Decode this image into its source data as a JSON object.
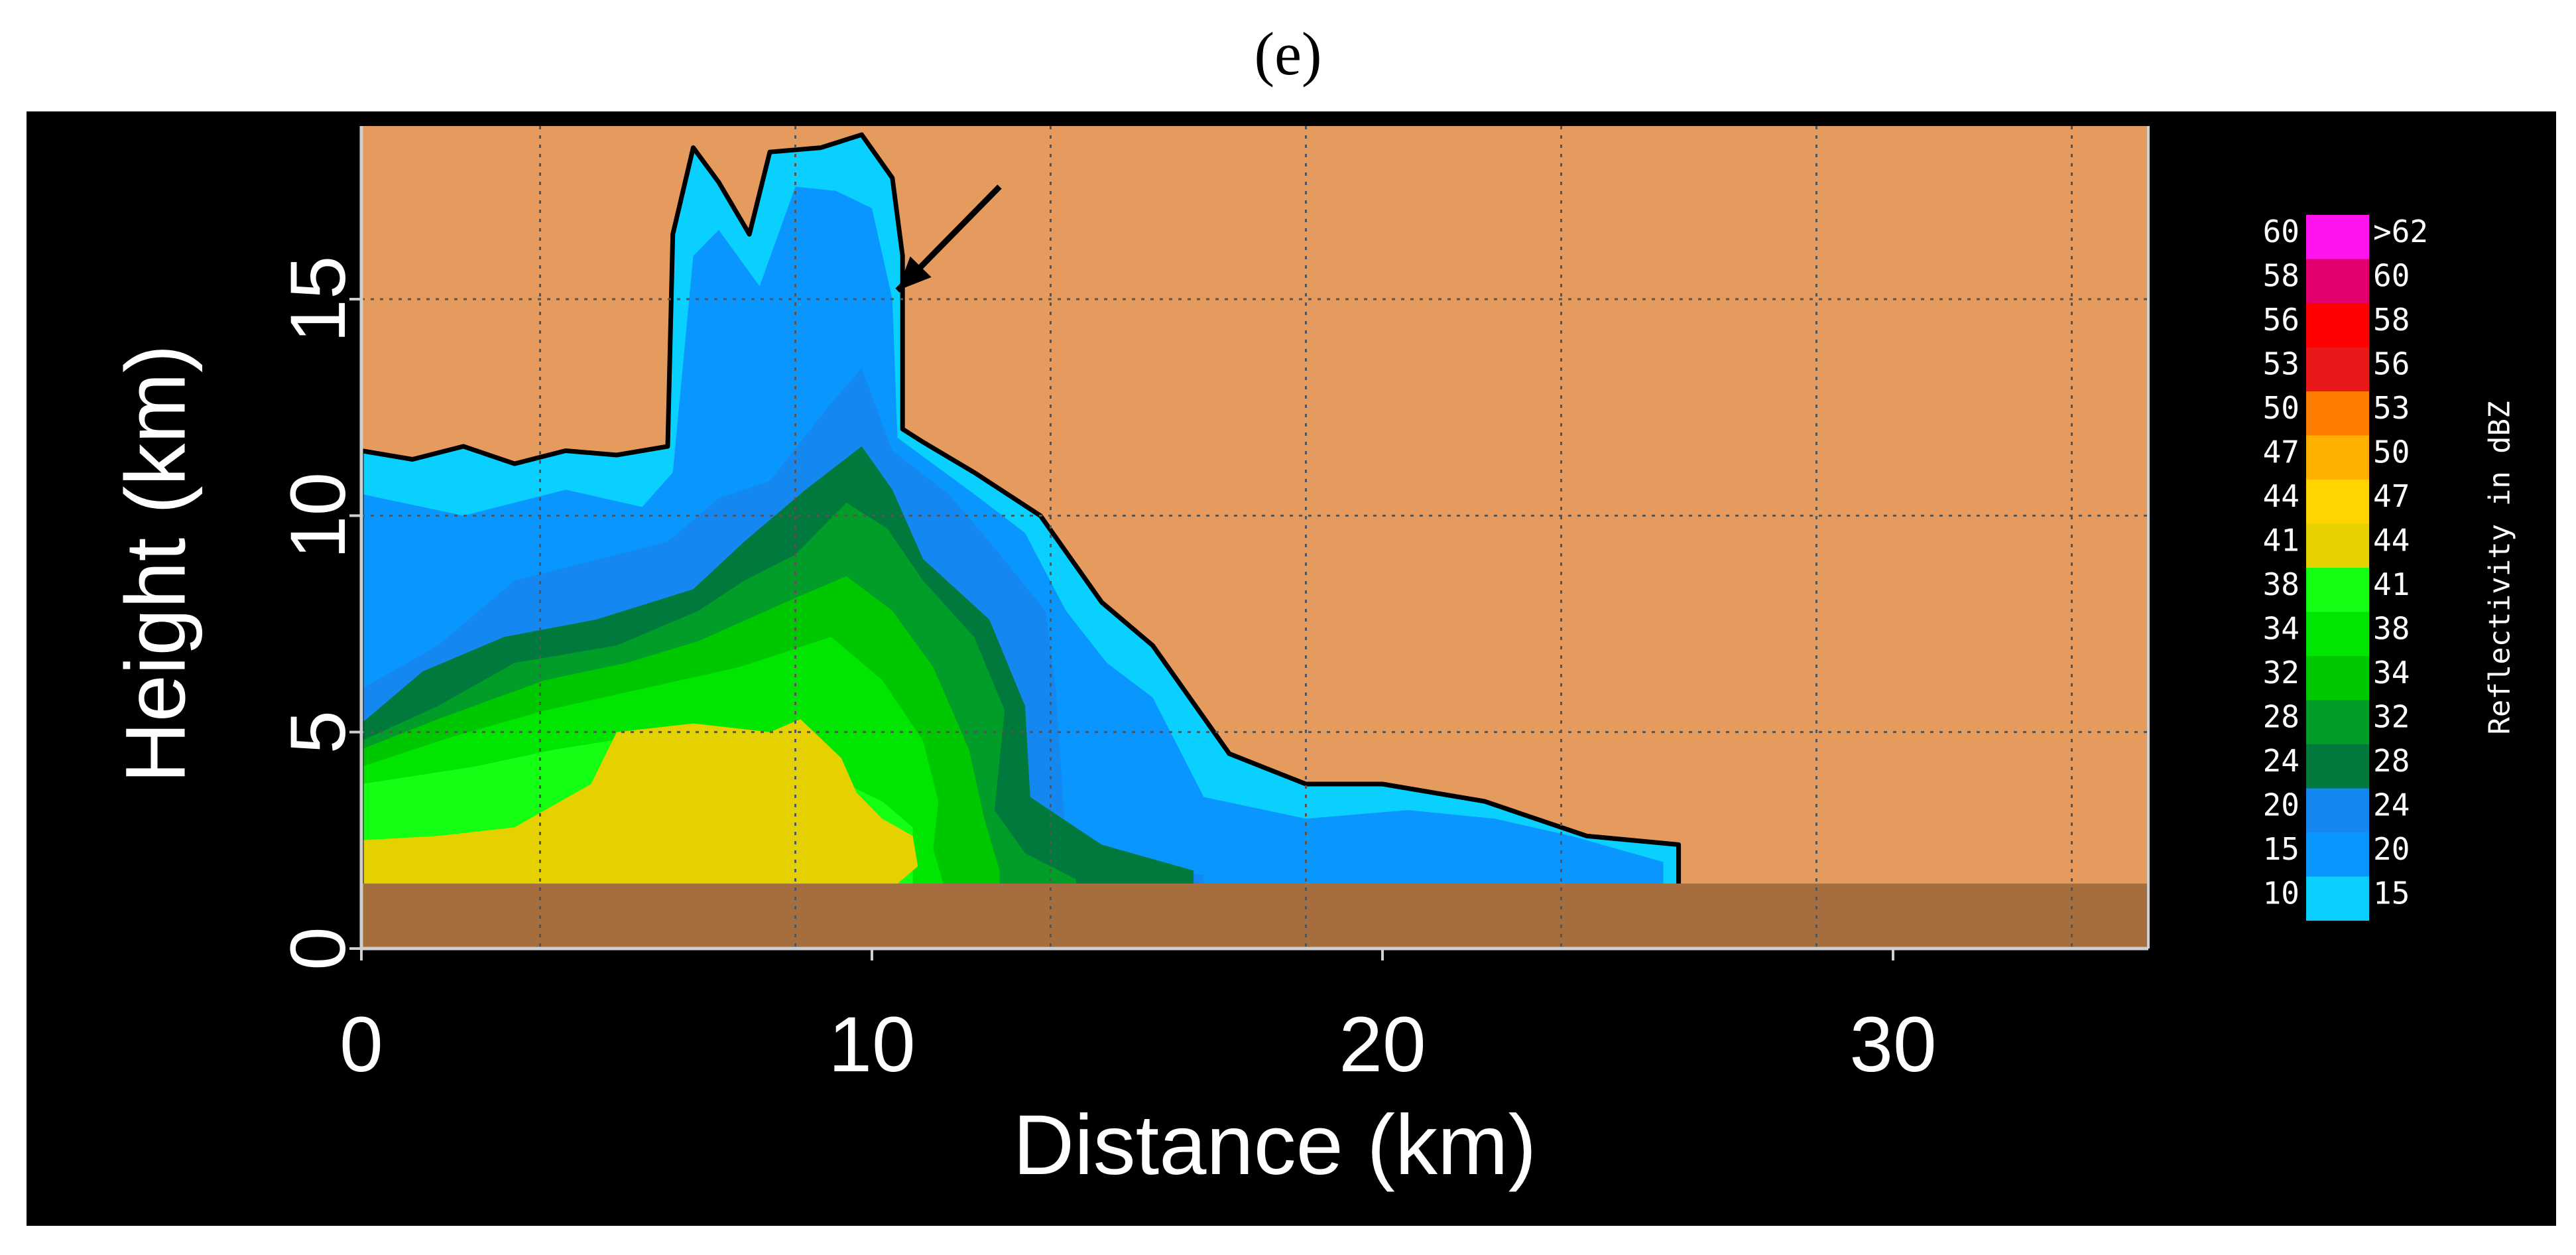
{
  "panel_label": "(e)",
  "chart_data": {
    "type": "heatmap",
    "title": "",
    "xlabel": "Distance (km)",
    "ylabel": "Height (km)",
    "xlim": [
      0,
      35
    ],
    "ylim": [
      0,
      19
    ],
    "x_ticks": [
      0,
      10,
      20,
      30
    ],
    "y_ticks": [
      0,
      5,
      10,
      15
    ],
    "grid": true,
    "grid_x": [
      3.5,
      8.5,
      13.5,
      18.5,
      23.5,
      28.5,
      33.5
    ],
    "grid_y": [
      5,
      10,
      15
    ],
    "background_color": "#e59b5e",
    "ground": {
      "top_km": 1.5,
      "color": "#a66e3e"
    },
    "legend": {
      "title": "Reflectivity in dBZ",
      "placement": "right",
      "bins": [
        {
          "lo": "60",
          "hi": ">62",
          "color": "#ff14f0"
        },
        {
          "lo": "58",
          "hi": "60",
          "color": "#e3006e"
        },
        {
          "lo": "56",
          "hi": "58",
          "color": "#ff0000"
        },
        {
          "lo": "53",
          "hi": "56",
          "color": "#e81818"
        },
        {
          "lo": "50",
          "hi": "53",
          "color": "#ff7c00"
        },
        {
          "lo": "47",
          "hi": "50",
          "color": "#ffb000"
        },
        {
          "lo": "44",
          "hi": "47",
          "color": "#ffd400"
        },
        {
          "lo": "41",
          "hi": "44",
          "color": "#e5d000"
        },
        {
          "lo": "38",
          "hi": "41",
          "color": "#14ff14"
        },
        {
          "lo": "34",
          "hi": "38",
          "color": "#00e600"
        },
        {
          "lo": "32",
          "hi": "34",
          "color": "#00c800"
        },
        {
          "lo": "28",
          "hi": "32",
          "color": "#009e28"
        },
        {
          "lo": "24",
          "hi": "28",
          "color": "#007a3c"
        },
        {
          "lo": "20",
          "hi": "24",
          "color": "#1488f0"
        },
        {
          "lo": "15",
          "hi": "20",
          "color": "#0a96ff"
        },
        {
          "lo": "10",
          "hi": "15",
          "color": "#0ad0ff"
        }
      ]
    },
    "echo_layers": [
      {
        "range_dbz": "10-15",
        "color": "#0ad0ff",
        "outline": [
          [
            0,
            1.5
          ],
          [
            0,
            11.5
          ],
          [
            1,
            11.3
          ],
          [
            2,
            11.6
          ],
          [
            3,
            11.2
          ],
          [
            4,
            11.5
          ],
          [
            5,
            11.4
          ],
          [
            6,
            11.6
          ],
          [
            6.1,
            16.5
          ],
          [
            6.5,
            18.5
          ],
          [
            7,
            17.7
          ],
          [
            7.6,
            16.5
          ],
          [
            8,
            18.4
          ],
          [
            9,
            18.5
          ],
          [
            9.8,
            18.8
          ],
          [
            10.4,
            17.8
          ],
          [
            10.6,
            16
          ],
          [
            10.6,
            12
          ],
          [
            11,
            11.7
          ],
          [
            12,
            11
          ],
          [
            13.3,
            10
          ],
          [
            14.5,
            8
          ],
          [
            15.5,
            7
          ],
          [
            16.1,
            6
          ],
          [
            17,
            4.5
          ],
          [
            18.5,
            3.8
          ],
          [
            20,
            3.8
          ],
          [
            22,
            3.4
          ],
          [
            24,
            2.6
          ],
          [
            25.8,
            2.4
          ],
          [
            25.8,
            1.5
          ]
        ]
      },
      {
        "range_dbz": "15-20",
        "color": "#0a96ff",
        "outline": [
          [
            0,
            1.5
          ],
          [
            0,
            10.5
          ],
          [
            2,
            10
          ],
          [
            4,
            10.6
          ],
          [
            5.5,
            10.2
          ],
          [
            6.1,
            11
          ],
          [
            6.5,
            16
          ],
          [
            7,
            16.6
          ],
          [
            7.8,
            15.3
          ],
          [
            8.5,
            17.6
          ],
          [
            9.3,
            17.5
          ],
          [
            10,
            17.1
          ],
          [
            10.4,
            15
          ],
          [
            10.5,
            11.8
          ],
          [
            12,
            10.5
          ],
          [
            13,
            9.6
          ],
          [
            13.8,
            7.8
          ],
          [
            14.6,
            6.6
          ],
          [
            15.5,
            5.8
          ],
          [
            16.5,
            3.5
          ],
          [
            18.5,
            3
          ],
          [
            20.5,
            3.2
          ],
          [
            22.2,
            3
          ],
          [
            23.7,
            2.6
          ],
          [
            25.5,
            2
          ],
          [
            25.5,
            1.5
          ]
        ]
      },
      {
        "range_dbz": "20-24",
        "color": "#1488f0",
        "outline": [
          [
            0,
            1.5
          ],
          [
            0,
            6
          ],
          [
            1.5,
            7
          ],
          [
            3,
            8.5
          ],
          [
            5,
            9.1
          ],
          [
            6,
            9.4
          ],
          [
            7,
            10.4
          ],
          [
            8,
            10.8
          ],
          [
            9.2,
            12.6
          ],
          [
            9.8,
            13.4
          ],
          [
            10.4,
            11.5
          ],
          [
            11.5,
            10.5
          ],
          [
            12.3,
            9.4
          ],
          [
            13.4,
            7.8
          ],
          [
            13.6,
            6
          ],
          [
            13.8,
            2.5
          ],
          [
            15,
            1.9
          ],
          [
            16.5,
            1.7
          ],
          [
            16.5,
            1.5
          ]
        ]
      },
      {
        "range_dbz": "24-28",
        "color": "#007a3c",
        "outline": [
          [
            0,
            1.5
          ],
          [
            0,
            5.2
          ],
          [
            1.2,
            6.4
          ],
          [
            2.8,
            7.2
          ],
          [
            4.6,
            7.6
          ],
          [
            6.5,
            8.3
          ],
          [
            7.5,
            9.4
          ],
          [
            8.7,
            10.6
          ],
          [
            9.8,
            11.6
          ],
          [
            10.4,
            10.6
          ],
          [
            11,
            9
          ],
          [
            12.3,
            7.6
          ],
          [
            13,
            5.6
          ],
          [
            13.1,
            3.5
          ],
          [
            14.5,
            2.4
          ],
          [
            16.3,
            1.8
          ],
          [
            16.3,
            1.5
          ]
        ]
      },
      {
        "range_dbz": "28-32",
        "color": "#009e28",
        "outline": [
          [
            0,
            1.5
          ],
          [
            0,
            4.8
          ],
          [
            1.5,
            5.6
          ],
          [
            3,
            6.6
          ],
          [
            5,
            7
          ],
          [
            6.6,
            7.8
          ],
          [
            7.5,
            8.5
          ],
          [
            8.5,
            9.1
          ],
          [
            9.5,
            10.3
          ],
          [
            10.3,
            9.7
          ],
          [
            11,
            8.5
          ],
          [
            12,
            7.2
          ],
          [
            12.6,
            5.5
          ],
          [
            12.4,
            3.2
          ],
          [
            13,
            2.2
          ],
          [
            14,
            1.6
          ],
          [
            14,
            1.5
          ]
        ]
      },
      {
        "range_dbz": "32-34",
        "color": "#00c800",
        "outline": [
          [
            0,
            1.5
          ],
          [
            0,
            4.6
          ],
          [
            1.5,
            5.3
          ],
          [
            3.6,
            6.2
          ],
          [
            5.2,
            6.6
          ],
          [
            6.6,
            7.1
          ],
          [
            8.5,
            8.1
          ],
          [
            9.5,
            8.6
          ],
          [
            10.4,
            7.8
          ],
          [
            11.2,
            6.5
          ],
          [
            11.9,
            4.6
          ],
          [
            12.2,
            3
          ],
          [
            12.5,
            1.8
          ],
          [
            12.5,
            1.5
          ]
        ]
      },
      {
        "range_dbz": "34-38",
        "color": "#00e600",
        "outline": [
          [
            0,
            1.5
          ],
          [
            0,
            4.2
          ],
          [
            1.8,
            4.9
          ],
          [
            3.6,
            5.5
          ],
          [
            5.5,
            6
          ],
          [
            7.4,
            6.5
          ],
          [
            9.2,
            7.2
          ],
          [
            10.2,
            6.2
          ],
          [
            11,
            4.8
          ],
          [
            11.3,
            3.4
          ],
          [
            11.2,
            2.3
          ],
          [
            11.4,
            1.5
          ]
        ]
      },
      {
        "range_dbz": "38-41",
        "color": "#14ff14",
        "outline": [
          [
            0,
            1.5
          ],
          [
            0,
            3.8
          ],
          [
            2.2,
            4.2
          ],
          [
            3.8,
            4.6
          ],
          [
            5.4,
            4.9
          ],
          [
            7,
            5.1
          ],
          [
            8.8,
            4.8
          ],
          [
            9.5,
            3.8
          ],
          [
            10.2,
            3.4
          ],
          [
            10.8,
            2.8
          ],
          [
            10.8,
            1.5
          ]
        ]
      },
      {
        "range_dbz": "41-44",
        "color": "#e5d000",
        "outline": [
          [
            0,
            1.5
          ],
          [
            0,
            2.5
          ],
          [
            1.5,
            2.6
          ],
          [
            3,
            2.8
          ],
          [
            4.5,
            3.8
          ],
          [
            5,
            5
          ],
          [
            6.5,
            5.2
          ],
          [
            8,
            5
          ],
          [
            8.6,
            5.3
          ],
          [
            9.4,
            4.4
          ],
          [
            9.7,
            3.6
          ],
          [
            10.2,
            3
          ],
          [
            10.8,
            2.6
          ],
          [
            10.9,
            1.9
          ],
          [
            10.5,
            1.5
          ]
        ]
      }
    ],
    "annotations": [
      {
        "type": "arrow",
        "label": "",
        "from": [
          12.5,
          17.6
        ],
        "to": [
          10.5,
          15.2
        ]
      }
    ]
  }
}
